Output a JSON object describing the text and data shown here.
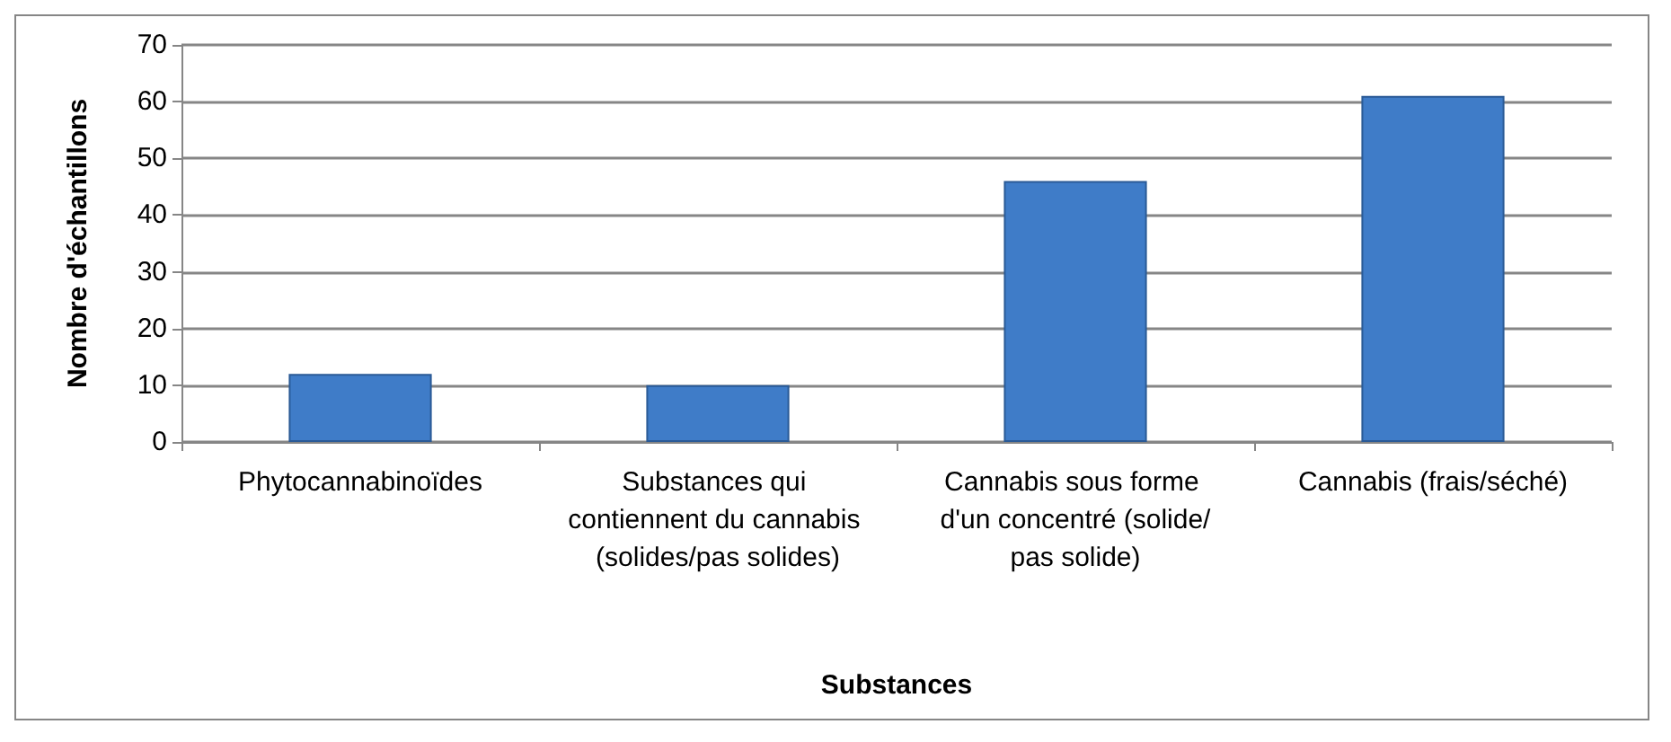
{
  "chart_data": {
    "type": "bar",
    "xlabel": "Substances",
    "ylabel": "Nombre d'échantillons",
    "categories": [
      "Phytocannabinoïdes",
      "Substances qui contiennent du cannabis (solides/pas solides)",
      "Cannabis sous forme d'un concentré (solide/pas solide)",
      "Cannabis (frais/séché)"
    ],
    "values": [
      12,
      10,
      46,
      61
    ],
    "color": "#3f7cc8",
    "ylim": [
      0,
      70
    ],
    "yticks": [
      0,
      10,
      20,
      30,
      40,
      50,
      60,
      70
    ],
    "grid": "y"
  }
}
